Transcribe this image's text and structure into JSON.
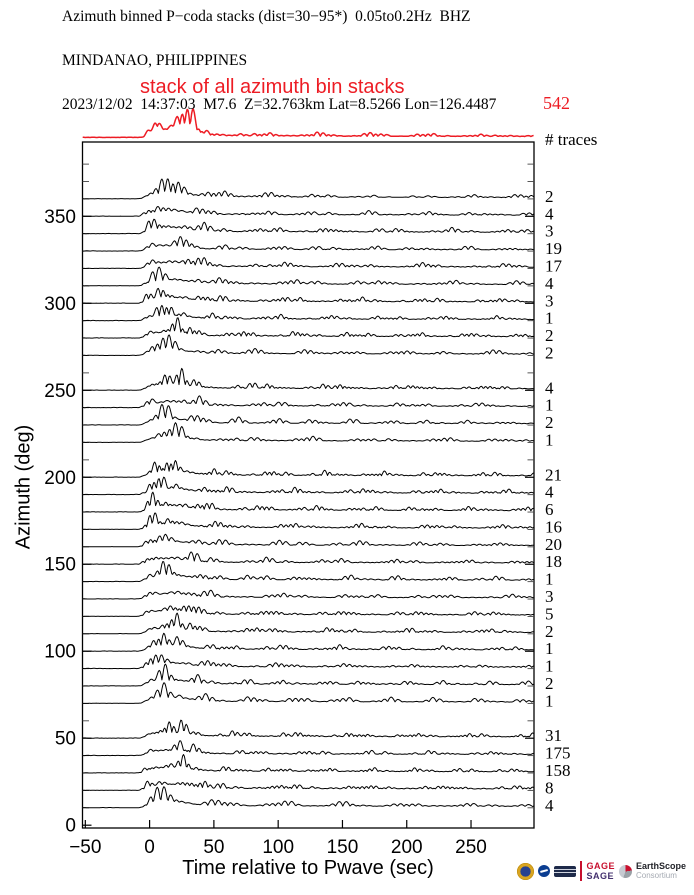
{
  "header": {
    "line1": "Azimuth binned P−coda stacks (dist=30−95*)  0.05to0.2Hz  BHZ",
    "line2": "MINDANAO, PHILIPPINES",
    "line3": "2023/12/02  14:37:03  M7.6  Z=32.763km Lat=8.5266 Lon=126.4487"
  },
  "stack_annotation": {
    "label": "stack of all azimuth bin stacks",
    "total": "542"
  },
  "traces_header": "# traces",
  "axes": {
    "x_label": "Time relative to Pwave (sec)",
    "y_label": "Azimuth (deg)",
    "x_ticks": [
      {
        "v": -50,
        "label": "−50"
      },
      {
        "v": 0,
        "label": "0"
      },
      {
        "v": 50,
        "label": "50"
      },
      {
        "v": 100,
        "label": "100"
      },
      {
        "v": 150,
        "label": "150"
      },
      {
        "v": 200,
        "label": "200"
      },
      {
        "v": 250,
        "label": "250"
      }
    ],
    "y_ticks": [
      {
        "v": 0,
        "label": "0"
      },
      {
        "v": 50,
        "label": "50"
      },
      {
        "v": 100,
        "label": "100"
      },
      {
        "v": 150,
        "label": "150"
      },
      {
        "v": 200,
        "label": "200"
      },
      {
        "v": 250,
        "label": "250"
      },
      {
        "v": 300,
        "label": "300"
      },
      {
        "v": 350,
        "label": "350"
      }
    ],
    "y_minor_step": 10
  },
  "colors": {
    "accent_red": "#ed1c24",
    "trace_black": "#000000"
  },
  "chart_data": {
    "type": "line",
    "title": "Azimuth binned P−coda stacks (dist=30−95*)  0.05to0.2Hz  BHZ",
    "subtitle": "MINDANAO, PHILIPPINES",
    "event_info": "2023/12/02  14:37:03  M7.6  Z=32.763km Lat=8.5266 Lon=126.4487",
    "xlabel": "Time relative to Pwave (sec)",
    "ylabel": "Azimuth (deg)",
    "xlim": [
      -52,
      299
    ],
    "ylim": [
      0,
      392
    ],
    "grid": false,
    "legend_position": "none",
    "overall_stack": {
      "label": "stack of all azimuth bin stacks",
      "total_traces": 542
    },
    "description": "Each row is the stacked P-coda envelope waveform for one 10-degree azimuth bin, plotted at its azimuth; number at right is the count of traces in the bin.",
    "bins": [
      {
        "azimuth": 360,
        "traces": 2
      },
      {
        "azimuth": 350,
        "traces": 4
      },
      {
        "azimuth": 340,
        "traces": 3
      },
      {
        "azimuth": 330,
        "traces": 19
      },
      {
        "azimuth": 320,
        "traces": 17
      },
      {
        "azimuth": 310,
        "traces": 4
      },
      {
        "azimuth": 300,
        "traces": 3
      },
      {
        "azimuth": 290,
        "traces": 1
      },
      {
        "azimuth": 280,
        "traces": 2
      },
      {
        "azimuth": 270,
        "traces": 2
      },
      {
        "azimuth": 250,
        "traces": 4
      },
      {
        "azimuth": 240,
        "traces": 1
      },
      {
        "azimuth": 230,
        "traces": 2
      },
      {
        "azimuth": 220,
        "traces": 1
      },
      {
        "azimuth": 200,
        "traces": 21
      },
      {
        "azimuth": 190,
        "traces": 4
      },
      {
        "azimuth": 180,
        "traces": 6
      },
      {
        "azimuth": 170,
        "traces": 16
      },
      {
        "azimuth": 160,
        "traces": 20
      },
      {
        "azimuth": 150,
        "traces": 18
      },
      {
        "azimuth": 140,
        "traces": 1
      },
      {
        "azimuth": 130,
        "traces": 3
      },
      {
        "azimuth": 120,
        "traces": 5
      },
      {
        "azimuth": 110,
        "traces": 2
      },
      {
        "azimuth": 100,
        "traces": 1
      },
      {
        "azimuth": 90,
        "traces": 1
      },
      {
        "azimuth": 80,
        "traces": 2
      },
      {
        "azimuth": 70,
        "traces": 1
      },
      {
        "azimuth": 50,
        "traces": 31
      },
      {
        "azimuth": 40,
        "traces": 175
      },
      {
        "azimuth": 30,
        "traces": 158
      },
      {
        "azimuth": 20,
        "traces": 8
      },
      {
        "azimuth": 10,
        "traces": 4
      }
    ]
  },
  "logos": {
    "gage": "GAGE",
    "sage": "SAGE",
    "earthscope": "EarthScope",
    "consortium": "Consortium"
  }
}
